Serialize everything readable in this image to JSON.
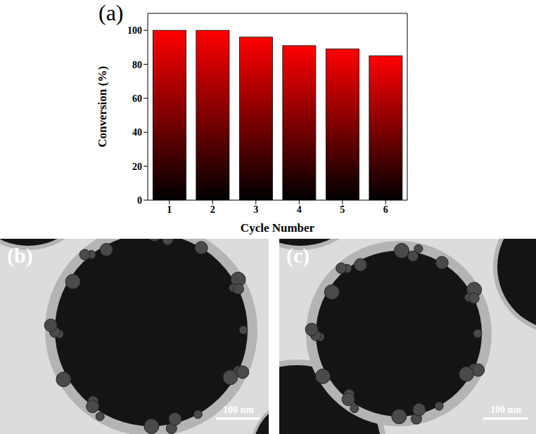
{
  "chart_data": {
    "type": "bar",
    "panel_label": "(a)",
    "xlabel": "Cycle Number",
    "ylabel": "Conversion (%)",
    "categories": [
      "1",
      "2",
      "3",
      "4",
      "5",
      "6"
    ],
    "values": [
      100,
      100,
      96,
      91,
      89,
      85
    ],
    "color": "#ff0000",
    "ylim": [
      0,
      110
    ],
    "yticks": [
      0,
      20,
      40,
      60,
      80,
      100
    ],
    "grid": false
  },
  "images": [
    {
      "label": "(b)",
      "scale_bar": "100 nm"
    },
    {
      "label": "(c)",
      "scale_bar": "100 nm"
    }
  ]
}
